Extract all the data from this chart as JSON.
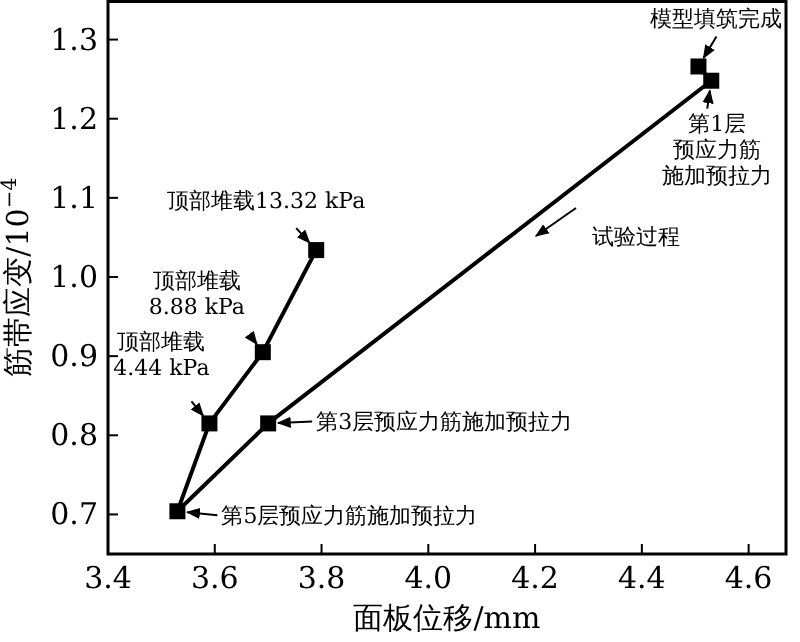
{
  "chart_data": {
    "type": "line",
    "xlabel": "面板位移/mm",
    "ylabel": "筋带应变/10$^{−4}$",
    "x": [
      4.506,
      4.53,
      3.7,
      3.53,
      3.59,
      3.69,
      3.79
    ],
    "series": [
      {
        "color": "#000000",
        "values": [
          1.266,
          1.248,
          0.815,
          0.704,
          0.815,
          0.905,
          1.034
        ]
      }
    ],
    "xlim": [
      3.4,
      4.67
    ],
    "ylim": [
      0.65,
      1.35
    ],
    "xticks": [
      3.4,
      3.6,
      3.8,
      {
        "value": 4,
        "label": "4.0"
      },
      4.2,
      4.4,
      4.6
    ],
    "yticks": [
      0.7,
      0.8,
      0.9,
      {
        "value": 1,
        "label": "1.0"
      },
      1.1,
      1.2,
      1.3
    ],
    "marker": "square",
    "line_style": "solid",
    "grid": false,
    "annotations": [
      {
        "text": "模型填筑完成",
        "x": 4.506,
        "y": 1.266
      },
      {
        "text": "第1层预应力筋施加预拉力",
        "x": 4.53,
        "y": 1.248
      },
      {
        "text": "第3层预应力筋施加预拉力",
        "x": 3.7,
        "y": 0.815
      },
      {
        "text": "第5层预应力筋施加预拉力",
        "x": 3.53,
        "y": 0.704
      },
      {
        "text": "顶部堆载4.44 kPa",
        "x": 3.59,
        "y": 0.815
      },
      {
        "text": "顶部堆载8.88 kPa",
        "x": 3.69,
        "y": 0.905
      },
      {
        "text": "顶部堆载13.32 kPa",
        "x": 3.79,
        "y": 1.034
      },
      "试验过程"
    ]
  }
}
